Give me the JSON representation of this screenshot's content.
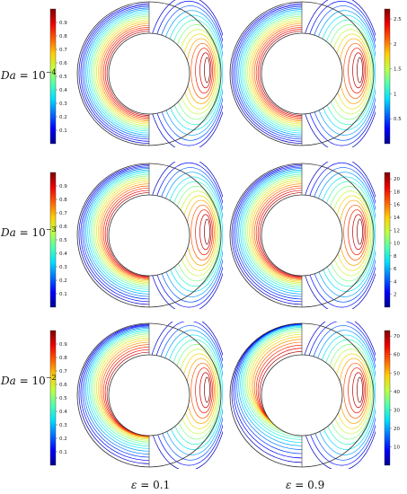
{
  "row_labels": [
    {
      "base": "Da",
      "eq": " = 10",
      "exp": "−4"
    },
    {
      "base": "Da",
      "eq": " = 10",
      "exp": "−3"
    },
    {
      "base": "Da",
      "eq": " = 10",
      "exp": "−2"
    }
  ],
  "column_labels": [
    {
      "sym": "ε",
      "val": " = 0.1"
    },
    {
      "sym": "ε",
      "val": " = 0.9"
    }
  ],
  "colorbars": [
    {
      "side": "left",
      "row": 0,
      "ticks": [
        "0.9",
        "0.8",
        "0.7",
        "0.6",
        "0.5",
        "0.4",
        "0.3",
        "0.2",
        "0.1"
      ],
      "min": 0,
      "max": 1
    },
    {
      "side": "right",
      "row": 0,
      "ticks": [
        "2.5",
        "2",
        "1.5",
        "1",
        "0.5"
      ],
      "min": 0,
      "max": 2.7
    },
    {
      "side": "left",
      "row": 1,
      "ticks": [
        "0.9",
        "0.8",
        "0.7",
        "0.6",
        "0.5",
        "0.4",
        "0.3",
        "0.2",
        "0.1"
      ],
      "min": 0,
      "max": 1
    },
    {
      "side": "right",
      "row": 1,
      "ticks": [
        "20",
        "18",
        "16",
        "14",
        "12",
        "10",
        "8",
        "6",
        "4",
        "2"
      ],
      "min": 0,
      "max": 21
    },
    {
      "side": "left",
      "row": 2,
      "ticks": [
        "0.9",
        "0.8",
        "0.7",
        "0.6",
        "0.5",
        "0.4",
        "0.3",
        "0.2",
        "0.1"
      ],
      "min": 0,
      "max": 1
    },
    {
      "side": "right",
      "row": 2,
      "ticks": [
        "70",
        "60",
        "50",
        "40",
        "30",
        "20",
        "10"
      ],
      "min": 0,
      "max": 73
    }
  ],
  "colors": {
    "ring_outline": "#333333",
    "colormap": [
      "#00008f",
      "#0000ff",
      "#0070ff",
      "#00dfff",
      "#50ffaf",
      "#bfff40",
      "#ffcf00",
      "#ff6000",
      "#ef0000",
      "#800000"
    ]
  }
}
